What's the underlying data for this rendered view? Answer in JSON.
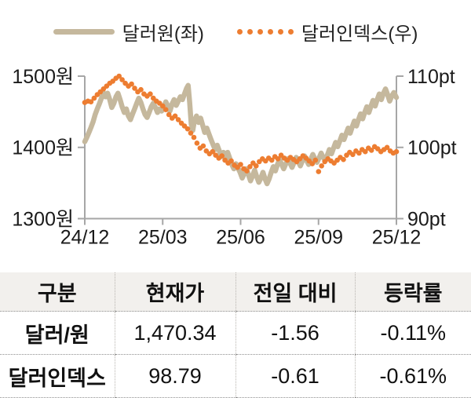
{
  "chart_data": {
    "type": "line",
    "title": "",
    "x_axis": {
      "tick_labels": [
        "24/12",
        "25/03",
        "25/06",
        "25/09",
        "25/12"
      ],
      "tick_months": [
        0,
        3,
        6,
        9,
        12
      ],
      "range_months": [
        0,
        12
      ]
    },
    "left_axis": {
      "label_unit": "원",
      "tick_labels": [
        "1500원",
        "1400원",
        "1300원"
      ],
      "min": 1300,
      "max": 1500
    },
    "right_axis": {
      "label_unit": "pt",
      "tick_labels": [
        "110pt",
        "100pt",
        "90pt"
      ],
      "min": 90,
      "max": 110
    },
    "grid": "off",
    "legend_position": "top-center",
    "series": [
      {
        "name": "달러원(좌)",
        "axis": "left",
        "style": "solid-thick",
        "color": "#c5b89d",
        "points": [
          [
            0.0,
            1408
          ],
          [
            0.08,
            1414
          ],
          [
            0.16,
            1421
          ],
          [
            0.24,
            1428
          ],
          [
            0.32,
            1436
          ],
          [
            0.4,
            1446
          ],
          [
            0.48,
            1454
          ],
          [
            0.56,
            1461
          ],
          [
            0.64,
            1469
          ],
          [
            0.72,
            1477
          ],
          [
            0.8,
            1471
          ],
          [
            0.88,
            1476
          ],
          [
            0.96,
            1467
          ],
          [
            1.04,
            1456
          ],
          [
            1.12,
            1462
          ],
          [
            1.2,
            1471
          ],
          [
            1.28,
            1476
          ],
          [
            1.36,
            1467
          ],
          [
            1.44,
            1457
          ],
          [
            1.52,
            1449
          ],
          [
            1.6,
            1454
          ],
          [
            1.68,
            1444
          ],
          [
            1.76,
            1439
          ],
          [
            1.84,
            1447
          ],
          [
            1.92,
            1454
          ],
          [
            2.0,
            1462
          ],
          [
            2.08,
            1469
          ],
          [
            2.16,
            1463
          ],
          [
            2.24,
            1454
          ],
          [
            2.32,
            1446
          ],
          [
            2.4,
            1442
          ],
          [
            2.48,
            1449
          ],
          [
            2.56,
            1457
          ],
          [
            2.64,
            1462
          ],
          [
            2.72,
            1456
          ],
          [
            2.8,
            1449
          ],
          [
            2.88,
            1454
          ],
          [
            2.96,
            1451
          ],
          [
            3.04,
            1457
          ],
          [
            3.12,
            1464
          ],
          [
            3.2,
            1458
          ],
          [
            3.28,
            1451
          ],
          [
            3.36,
            1461
          ],
          [
            3.44,
            1467
          ],
          [
            3.52,
            1459
          ],
          [
            3.6,
            1465
          ],
          [
            3.68,
            1471
          ],
          [
            3.76,
            1467
          ],
          [
            3.84,
            1475
          ],
          [
            3.92,
            1483
          ],
          [
            3.98,
            1487
          ],
          [
            4.04,
            1462
          ],
          [
            4.1,
            1433
          ],
          [
            4.16,
            1424
          ],
          [
            4.22,
            1437
          ],
          [
            4.3,
            1444
          ],
          [
            4.38,
            1435
          ],
          [
            4.46,
            1441
          ],
          [
            4.54,
            1431
          ],
          [
            4.62,
            1421
          ],
          [
            4.7,
            1427
          ],
          [
            4.78,
            1419
          ],
          [
            4.86,
            1411
          ],
          [
            4.94,
            1404
          ],
          [
            5.02,
            1397
          ],
          [
            5.1,
            1403
          ],
          [
            5.18,
            1395
          ],
          [
            5.26,
            1387
          ],
          [
            5.34,
            1393
          ],
          [
            5.42,
            1385
          ],
          [
            5.5,
            1393
          ],
          [
            5.58,
            1385
          ],
          [
            5.66,
            1376
          ],
          [
            5.74,
            1370
          ],
          [
            5.82,
            1377
          ],
          [
            5.9,
            1371
          ],
          [
            5.98,
            1365
          ],
          [
            6.06,
            1357
          ],
          [
            6.14,
            1363
          ],
          [
            6.22,
            1370
          ],
          [
            6.3,
            1362
          ],
          [
            6.38,
            1353
          ],
          [
            6.46,
            1360
          ],
          [
            6.54,
            1368
          ],
          [
            6.62,
            1359
          ],
          [
            6.7,
            1351
          ],
          [
            6.78,
            1357
          ],
          [
            6.86,
            1365
          ],
          [
            6.94,
            1356
          ],
          [
            7.02,
            1349
          ],
          [
            7.1,
            1356
          ],
          [
            7.18,
            1365
          ],
          [
            7.26,
            1373
          ],
          [
            7.34,
            1367
          ],
          [
            7.42,
            1376
          ],
          [
            7.5,
            1383
          ],
          [
            7.58,
            1376
          ],
          [
            7.66,
            1370
          ],
          [
            7.74,
            1377
          ],
          [
            7.82,
            1384
          ],
          [
            7.9,
            1378
          ],
          [
            7.98,
            1372
          ],
          [
            8.06,
            1379
          ],
          [
            8.14,
            1386
          ],
          [
            8.22,
            1380
          ],
          [
            8.3,
            1374
          ],
          [
            8.38,
            1381
          ],
          [
            8.46,
            1388
          ],
          [
            8.54,
            1382
          ],
          [
            8.62,
            1376
          ],
          [
            8.7,
            1383
          ],
          [
            8.78,
            1390
          ],
          [
            8.86,
            1384
          ],
          [
            8.94,
            1379
          ],
          [
            9.02,
            1385
          ],
          [
            9.1,
            1392
          ],
          [
            9.18,
            1386
          ],
          [
            9.26,
            1381
          ],
          [
            9.34,
            1389
          ],
          [
            9.42,
            1397
          ],
          [
            9.5,
            1391
          ],
          [
            9.58,
            1399
          ],
          [
            9.66,
            1407
          ],
          [
            9.74,
            1401
          ],
          [
            9.82,
            1409
          ],
          [
            9.9,
            1417
          ],
          [
            9.98,
            1411
          ],
          [
            10.06,
            1419
          ],
          [
            10.14,
            1427
          ],
          [
            10.22,
            1420
          ],
          [
            10.3,
            1429
          ],
          [
            10.38,
            1437
          ],
          [
            10.46,
            1430
          ],
          [
            10.54,
            1439
          ],
          [
            10.62,
            1447
          ],
          [
            10.7,
            1440
          ],
          [
            10.78,
            1449
          ],
          [
            10.86,
            1457
          ],
          [
            10.94,
            1449
          ],
          [
            11.02,
            1458
          ],
          [
            11.1,
            1466
          ],
          [
            11.18,
            1458
          ],
          [
            11.26,
            1467
          ],
          [
            11.34,
            1475
          ],
          [
            11.42,
            1467
          ],
          [
            11.5,
            1476
          ],
          [
            11.58,
            1482
          ],
          [
            11.66,
            1474
          ],
          [
            11.74,
            1465
          ],
          [
            11.82,
            1472
          ],
          [
            11.9,
            1477
          ],
          [
            12.0,
            1470
          ]
        ]
      },
      {
        "name": "달러인덱스(우)",
        "axis": "right",
        "style": "dotted",
        "color": "#ed7d31",
        "points": [
          [
            0.0,
            106.3
          ],
          [
            0.12,
            106.5
          ],
          [
            0.24,
            106.4
          ],
          [
            0.36,
            106.9
          ],
          [
            0.48,
            107.4
          ],
          [
            0.6,
            107.8
          ],
          [
            0.72,
            108.2
          ],
          [
            0.84,
            108.6
          ],
          [
            0.96,
            109.0
          ],
          [
            1.08,
            109.3
          ],
          [
            1.2,
            109.7
          ],
          [
            1.32,
            110.0
          ],
          [
            1.44,
            109.5
          ],
          [
            1.56,
            109.0
          ],
          [
            1.68,
            108.6
          ],
          [
            1.8,
            108.9
          ],
          [
            1.92,
            108.3
          ],
          [
            2.04,
            107.8
          ],
          [
            2.16,
            108.1
          ],
          [
            2.28,
            107.5
          ],
          [
            2.4,
            107.2
          ],
          [
            2.52,
            107.5
          ],
          [
            2.64,
            106.9
          ],
          [
            2.76,
            106.5
          ],
          [
            2.88,
            106.2
          ],
          [
            3.0,
            105.8
          ],
          [
            3.12,
            105.3
          ],
          [
            3.24,
            104.6
          ],
          [
            3.36,
            104.1
          ],
          [
            3.48,
            104.4
          ],
          [
            3.6,
            103.9
          ],
          [
            3.72,
            103.4
          ],
          [
            3.84,
            103.0
          ],
          [
            3.96,
            102.6
          ],
          [
            4.08,
            102.0
          ],
          [
            4.2,
            101.4
          ],
          [
            4.32,
            100.6
          ],
          [
            4.44,
            99.9
          ],
          [
            4.56,
            100.2
          ],
          [
            4.68,
            99.5
          ],
          [
            4.8,
            99.1
          ],
          [
            4.92,
            99.4
          ],
          [
            5.04,
            98.9
          ],
          [
            5.16,
            98.5
          ],
          [
            5.28,
            98.8
          ],
          [
            5.4,
            98.2
          ],
          [
            5.52,
            97.8
          ],
          [
            5.64,
            98.1
          ],
          [
            5.76,
            97.5
          ],
          [
            5.88,
            97.2
          ],
          [
            6.0,
            97.6
          ],
          [
            6.12,
            97.0
          ],
          [
            6.24,
            96.7
          ],
          [
            6.36,
            97.3
          ],
          [
            6.48,
            97.8
          ],
          [
            6.6,
            97.4
          ],
          [
            6.72,
            98.0
          ],
          [
            6.84,
            98.4
          ],
          [
            6.96,
            98.1
          ],
          [
            7.08,
            98.5
          ],
          [
            7.2,
            98.2
          ],
          [
            7.32,
            98.7
          ],
          [
            7.44,
            98.4
          ],
          [
            7.56,
            98.9
          ],
          [
            7.68,
            98.5
          ],
          [
            7.8,
            98.2
          ],
          [
            7.92,
            98.6
          ],
          [
            8.04,
            98.3
          ],
          [
            8.16,
            98.0
          ],
          [
            8.28,
            98.4
          ],
          [
            8.4,
            98.8
          ],
          [
            8.52,
            98.5
          ],
          [
            8.64,
            98.1
          ],
          [
            8.76,
            97.7
          ],
          [
            8.88,
            98.2
          ],
          [
            9.0,
            96.6
          ],
          [
            9.12,
            97.4
          ],
          [
            9.24,
            98.0
          ],
          [
            9.36,
            98.4
          ],
          [
            9.48,
            98.1
          ],
          [
            9.6,
            97.8
          ],
          [
            9.72,
            98.2
          ],
          [
            9.84,
            98.6
          ],
          [
            9.96,
            98.3
          ],
          [
            10.08,
            98.9
          ],
          [
            10.2,
            99.3
          ],
          [
            10.32,
            99.0
          ],
          [
            10.44,
            99.5
          ],
          [
            10.56,
            99.2
          ],
          [
            10.68,
            99.7
          ],
          [
            10.8,
            99.4
          ],
          [
            10.92,
            99.9
          ],
          [
            11.04,
            99.6
          ],
          [
            11.16,
            100.1
          ],
          [
            11.28,
            99.8
          ],
          [
            11.4,
            99.4
          ],
          [
            11.52,
            99.7
          ],
          [
            11.64,
            100.0
          ],
          [
            11.76,
            99.5
          ],
          [
            11.88,
            99.2
          ],
          [
            12.0,
            99.4
          ]
        ]
      }
    ],
    "colors": {
      "dollar_won_line": "#c5b89d",
      "dollar_index_dot": "#ed7d31",
      "axis": "#a6a6a6",
      "text": "#1a1a1a"
    }
  },
  "table": {
    "headers": [
      "구분",
      "현재가",
      "전일 대비",
      "등락률"
    ],
    "rows": [
      {
        "name": "달러/원",
        "price": "1,470.34",
        "change": "-1.56",
        "change_pct": "-0.11%"
      },
      {
        "name": "달러인덱스",
        "price": "98.79",
        "change": "-0.61",
        "change_pct": "-0.61%"
      }
    ],
    "header_bg": "#f2f0ed"
  }
}
